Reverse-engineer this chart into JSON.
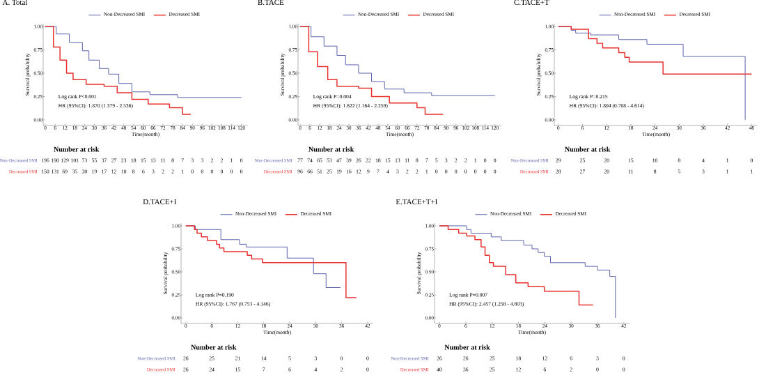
{
  "chart_data": [
    {
      "type": "step",
      "title": "A. Total",
      "xlabel": "Time(month)",
      "ylabel": "Survival probability",
      "legend": "top",
      "xlim": [
        -1.3,
        124
      ],
      "xticks": [
        0,
        6,
        12,
        18,
        24,
        30,
        36,
        42,
        48,
        54,
        60,
        66,
        72,
        78,
        84,
        90,
        96,
        102,
        108,
        114,
        120
      ],
      "ylim": [
        -0.06,
        1.03
      ],
      "yticks": [
        {
          "value": 0,
          "label": "0.00"
        },
        {
          "value": 0.25,
          "label": "0.25"
        },
        {
          "value": 0.5,
          "label": "0.50"
        },
        {
          "value": 0.75,
          "label": "0.75"
        },
        {
          "value": 1,
          "label": "1.00"
        }
      ],
      "series": [
        {
          "name": "Non-Decreased SMI",
          "color": "#5a62ad",
          "x": [
            0,
            6.7,
            14.7,
            22.7,
            26.7,
            33,
            38.7,
            45,
            53,
            64,
            81,
            120
          ],
          "values": [
            1,
            0.92,
            0.83,
            0.74,
            0.64,
            0.55,
            0.49,
            0.39,
            0.3,
            0.27,
            0.24,
            0.24
          ]
        },
        {
          "name": "Decreased SMI",
          "color": "#e8312f",
          "x": [
            0,
            5,
            9,
            13,
            17,
            25,
            36,
            44,
            53,
            63,
            76,
            84,
            89
          ],
          "values": [
            1,
            0.78,
            0.64,
            0.5,
            0.43,
            0.38,
            0.36,
            0.29,
            0.22,
            0.17,
            0.13,
            0.06,
            0.06
          ]
        }
      ],
      "annotations": [
        "Log rank P<0.001",
        "HR (95%CI): 1.870 (1.379 - 2.536)",
        "Number at risk",
        "Non-Decreased SMI",
        "Decreased SMI",
        "196",
        "190",
        "129",
        "101",
        "73",
        "55",
        "37",
        "27",
        "23",
        "18",
        "15",
        "13",
        "11",
        "8",
        "7",
        "3",
        "3",
        "2",
        "2",
        "1",
        "0",
        "150",
        "131",
        "69",
        "35",
        "30",
        "19",
        "17",
        "12",
        "10",
        "8",
        "6",
        "3",
        "2",
        "2",
        "1",
        "0",
        "0",
        "0",
        "0",
        "0",
        "0"
      ]
    },
    {
      "type": "step",
      "title": "B.TACE",
      "xlabel": "Time(month)",
      "ylabel": "Survival probability",
      "legend": "top",
      "xlim": [
        -1.3,
        124
      ],
      "xticks": [
        0,
        6,
        12,
        18,
        24,
        30,
        36,
        42,
        48,
        54,
        60,
        66,
        72,
        78,
        84,
        90,
        96,
        102,
        108,
        114,
        120
      ],
      "ylim": [
        -0.06,
        1.03
      ],
      "yticks": [
        {
          "value": 0,
          "label": "0.00"
        },
        {
          "value": 0.25,
          "label": "0.25"
        },
        {
          "value": 0.5,
          "label": "0.50"
        },
        {
          "value": 0.75,
          "label": "0.75"
        },
        {
          "value": 1,
          "label": "1.00"
        }
      ],
      "series": [
        {
          "name": "Non-Decreased SMI",
          "color": "#5a62ad",
          "x": [
            0,
            6.7,
            14.7,
            22.7,
            28,
            36,
            44,
            52,
            64,
            81,
            120
          ],
          "values": [
            1,
            0.89,
            0.79,
            0.69,
            0.59,
            0.5,
            0.41,
            0.33,
            0.29,
            0.26,
            0.26
          ]
        },
        {
          "name": "Decreased SMI",
          "color": "#e8312f",
          "x": [
            0,
            5.3,
            10.7,
            17,
            22.7,
            36,
            44,
            55,
            72,
            77,
            88
          ],
          "values": [
            1,
            0.73,
            0.57,
            0.43,
            0.36,
            0.34,
            0.25,
            0.18,
            0.13,
            0.06,
            0.06
          ]
        }
      ],
      "annotations": [
        "Log rank P=0.004",
        "HR (95%CI): 1.622 (1.164 - 2.259)",
        "Number at risk",
        "Non-Decreased SMI",
        "Decreased SMI",
        "77",
        "74",
        "65",
        "53",
        "47",
        "39",
        "26",
        "22",
        "18",
        "15",
        "13",
        "11",
        "8",
        "7",
        "5",
        "3",
        "2",
        "2",
        "1",
        "0",
        "0",
        "96",
        "66",
        "51",
        "25",
        "19",
        "16",
        "12",
        "9",
        "7",
        "4",
        "3",
        "2",
        "2",
        "1",
        "0",
        "0",
        "0",
        "0",
        "0",
        "0",
        "0"
      ]
    },
    {
      "type": "step",
      "title": "C.TACE+T",
      "xlabel": "Time(month)",
      "ylabel": "Survival probability",
      "legend": "top",
      "xlim": [
        -1,
        49.5
      ],
      "xticks": [
        0,
        6,
        12,
        18,
        24,
        30,
        36,
        42,
        48
      ],
      "ylim": [
        -0.06,
        1.03
      ],
      "yticks": [
        {
          "value": 0,
          "label": "0.00"
        },
        {
          "value": 0.25,
          "label": "0.25"
        },
        {
          "value": 0.5,
          "label": "0.50"
        },
        {
          "value": 0.75,
          "label": "0.75"
        },
        {
          "value": 1,
          "label": "1.00"
        }
      ],
      "series": [
        {
          "name": "Non-Decreased SMI",
          "color": "#5a62ad",
          "x": [
            0,
            3.2,
            4.3,
            8,
            15,
            22,
            31,
            46.4
          ],
          "values": [
            1,
            0.96,
            0.93,
            0.91,
            0.86,
            0.81,
            0.68,
            0
          ]
        },
        {
          "name": "Decreased SMI",
          "color": "#e8312f",
          "x": [
            0,
            3.2,
            7.5,
            9.6,
            11,
            15,
            16.5,
            17.6,
            26,
            48
          ],
          "values": [
            1,
            0.97,
            0.87,
            0.82,
            0.77,
            0.72,
            0.67,
            0.62,
            0.49,
            0.49
          ]
        }
      ],
      "annotations": [
        "Log rank P=0.215",
        "HR (95%CI): 1.804 (0.708 - 4.614)",
        "Number at risk",
        "Non-Decreased SMI",
        "Decreased SMI",
        "29",
        "25",
        "20",
        "15",
        "10",
        "8",
        "4",
        "1",
        "0",
        "28",
        "27",
        "20",
        "11",
        "8",
        "5",
        "3",
        "1",
        "1"
      ]
    },
    {
      "type": "step",
      "title": "D.TACE+I",
      "xlabel": "Time(month)",
      "ylabel": "Survival probability",
      "legend": "top",
      "xlim": [
        -1.1,
        43.3
      ],
      "xticks": [
        0,
        6,
        12,
        18,
        24,
        30,
        36,
        42
      ],
      "ylim": [
        -0.06,
        1.03
      ],
      "yticks": [
        {
          "value": 0,
          "label": "0.00"
        },
        {
          "value": 0.25,
          "label": "0.25"
        },
        {
          "value": 0.5,
          "label": "0.50"
        },
        {
          "value": 0.75,
          "label": "0.75"
        },
        {
          "value": 1,
          "label": "1.00"
        }
      ],
      "series": [
        {
          "name": "Non-Decreased SMI",
          "color": "#5a62ad",
          "x": [
            0,
            2.2,
            8.1,
            12.4,
            14,
            23.4,
            29.5,
            32.4,
            35.7
          ],
          "values": [
            1,
            0.96,
            0.85,
            0.8,
            0.77,
            0.65,
            0.48,
            0.33,
            0.33
          ]
        },
        {
          "name": "Decreased SMI",
          "color": "#e8312f",
          "x": [
            0,
            2,
            2.6,
            3.6,
            5,
            7.1,
            7.8,
            8.8,
            14.2,
            15.2,
            17.7,
            37,
            39.4
          ],
          "values": [
            1,
            0.96,
            0.92,
            0.88,
            0.84,
            0.8,
            0.76,
            0.72,
            0.68,
            0.64,
            0.6,
            0.22,
            0.22
          ]
        }
      ],
      "annotations": [
        "Log rank P=0.190",
        "HR (95%CI): 1.767 (0.753 - 4.146)",
        "Number at risk",
        "Non-Decreased SMI",
        "Decreased SMI",
        "26",
        "25",
        "21",
        "14",
        "5",
        "3",
        "0",
        "0",
        "26",
        "24",
        "15",
        "7",
        "6",
        "4",
        "2",
        "0"
      ]
    },
    {
      "type": "step",
      "title": "E.TACE+T+I",
      "xlabel": "Time(month)",
      "ylabel": "Survival probability",
      "legend": "top",
      "xlim": [
        -1.1,
        43.3
      ],
      "xticks": [
        0,
        6,
        12,
        18,
        24,
        30,
        36,
        42
      ],
      "ylim": [
        -0.06,
        1.03
      ],
      "yticks": [
        {
          "value": 0,
          "label": "0.00"
        },
        {
          "value": 0.25,
          "label": "0.25"
        },
        {
          "value": 0.5,
          "label": "0.50"
        },
        {
          "value": 0.75,
          "label": "0.75"
        },
        {
          "value": 1,
          "label": "1.00"
        }
      ],
      "series": [
        {
          "name": "Non-Decreased SMI",
          "color": "#5a62ad",
          "x": [
            0,
            6.2,
            7.2,
            11.8,
            14.1,
            19.2,
            21.1,
            22.5,
            23.9,
            25.3,
            33.2,
            36,
            38.8,
            40.1
          ],
          "values": [
            1,
            0.96,
            0.92,
            0.88,
            0.84,
            0.79,
            0.75,
            0.71,
            0.67,
            0.6,
            0.56,
            0.52,
            0.45,
            0
          ]
        },
        {
          "name": "Decreased SMI",
          "color": "#e8312f",
          "x": [
            0,
            2,
            4.4,
            6.2,
            8.1,
            9.5,
            10.4,
            11.4,
            12.3,
            15.1,
            17.4,
            20.2,
            23.9,
            31.8,
            35
          ],
          "values": [
            1,
            0.96,
            0.92,
            0.89,
            0.85,
            0.77,
            0.68,
            0.6,
            0.56,
            0.47,
            0.38,
            0.34,
            0.29,
            0.14,
            0.14
          ]
        }
      ],
      "annotations": [
        "Log rank P=0.007",
        "HR (95%CI): 2.457 (1.258 - 4.803)",
        "Number at risk",
        "Non-Decreased SMI",
        "Decreased SMI",
        "26",
        "26",
        "25",
        "18",
        "12",
        "6",
        "3",
        "0",
        "40",
        "36",
        "25",
        "12",
        "6",
        "2",
        "0",
        "0"
      ]
    }
  ]
}
